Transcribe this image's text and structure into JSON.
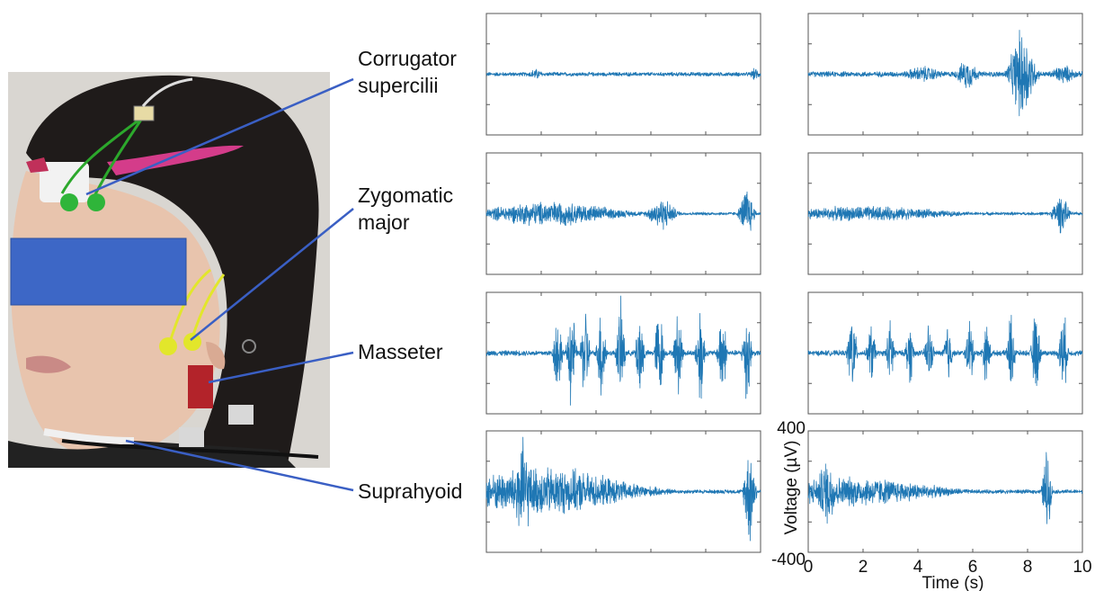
{
  "muscles": [
    {
      "lines": [
        "Corrugator",
        "supercilii"
      ]
    },
    {
      "lines": [
        "Zygomatic",
        "major"
      ]
    },
    {
      "lines": [
        "Masseter"
      ]
    },
    {
      "lines": [
        "Suprahyoid"
      ]
    }
  ],
  "colors": {
    "signal": "#1f77b4",
    "leader_line": "#3a5fc4",
    "redaction_box": "#3d67c6",
    "axis": "#555555"
  },
  "photo": {
    "description_icon": "face-photo-with-emg-electrodes",
    "elements": [
      "hair",
      "face",
      "green-electrode-clips",
      "yellow-electrode-clips",
      "red-electrode-clips",
      "white-electrode-clips",
      "pink-hair-clip",
      "redaction-box"
    ]
  },
  "chart_data": {
    "type": "line",
    "xlabel": "Time (s)",
    "ylabel": "Voltage (µV)",
    "xlim": [
      0,
      10
    ],
    "ylim": [
      -400,
      400
    ],
    "x_ticks": [
      "0",
      "2",
      "4",
      "6",
      "8",
      "10"
    ],
    "y_ticks": [
      "400",
      "-400"
    ],
    "columns": 2,
    "rows": [
      "Corrugator supercilii",
      "Zygomatic major",
      "Masseter",
      "Suprahyoid"
    ],
    "panels": [
      {
        "row": 0,
        "col": 0,
        "baseline_amp": 15,
        "bursts": [
          [
            1.8,
            0.6,
            40
          ],
          [
            9.8,
            0.4,
            45
          ]
        ]
      },
      {
        "row": 0,
        "col": 1,
        "baseline_amp": 20,
        "bursts": [
          [
            4.2,
            1.5,
            60
          ],
          [
            5.8,
            0.8,
            110
          ],
          [
            7.8,
            0.9,
            340
          ],
          [
            9.3,
            1.0,
            70
          ]
        ]
      },
      {
        "row": 1,
        "col": 0,
        "baseline_amp": 12,
        "bursts": [
          [
            2.3,
            5.5,
            90
          ],
          [
            6.4,
            1.0,
            120
          ],
          [
            9.5,
            0.5,
            200
          ]
        ]
      },
      {
        "row": 1,
        "col": 1,
        "baseline_amp": 12,
        "bursts": [
          [
            2.0,
            7.0,
            55
          ],
          [
            9.2,
            0.6,
            140
          ]
        ]
      },
      {
        "row": 2,
        "col": 0,
        "baseline_amp": 20,
        "bursts": [
          [
            2.6,
            0.3,
            330
          ],
          [
            3.1,
            0.3,
            400
          ],
          [
            3.6,
            0.3,
            380
          ],
          [
            4.2,
            0.3,
            400
          ],
          [
            4.9,
            0.3,
            380
          ],
          [
            5.6,
            0.3,
            360
          ],
          [
            6.3,
            0.3,
            380
          ],
          [
            7.0,
            0.3,
            330
          ],
          [
            7.8,
            0.3,
            400
          ],
          [
            8.6,
            0.3,
            360
          ],
          [
            9.5,
            0.3,
            400
          ]
        ]
      },
      {
        "row": 2,
        "col": 1,
        "baseline_amp": 20,
        "bursts": [
          [
            1.6,
            0.3,
            350
          ],
          [
            2.3,
            0.3,
            230
          ],
          [
            3.0,
            0.3,
            250
          ],
          [
            3.7,
            0.3,
            230
          ],
          [
            4.4,
            0.3,
            240
          ],
          [
            5.1,
            0.3,
            250
          ],
          [
            5.9,
            0.3,
            260
          ],
          [
            6.5,
            0.3,
            220
          ],
          [
            7.4,
            0.3,
            300
          ],
          [
            8.3,
            0.3,
            320
          ],
          [
            9.3,
            0.3,
            330
          ]
        ]
      },
      {
        "row": 3,
        "col": 0,
        "baseline_amp": 15,
        "bursts": [
          [
            1.3,
            0.8,
            380
          ],
          [
            2.0,
            7.0,
            180
          ],
          [
            9.6,
            0.4,
            390
          ]
        ]
      },
      {
        "row": 3,
        "col": 1,
        "baseline_amp": 15,
        "bursts": [
          [
            0.7,
            0.8,
            250
          ],
          [
            1.5,
            7.0,
            110
          ],
          [
            8.7,
            0.3,
            340
          ]
        ]
      }
    ]
  }
}
